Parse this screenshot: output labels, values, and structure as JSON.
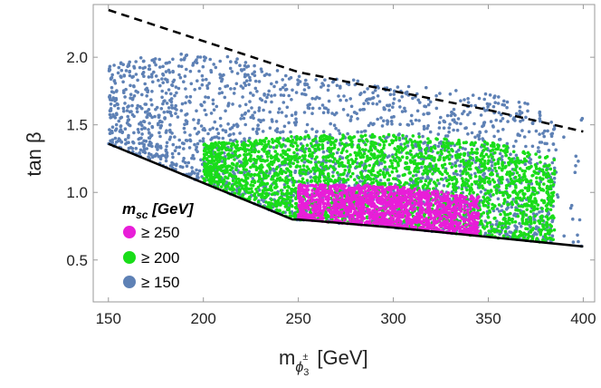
{
  "chart_data": {
    "type": "scatter",
    "xlabel": "m",
    "xlabel_sub": "ϕ",
    "xlabel_sup": "±",
    "xlabel_subsub": "3",
    "xlabel_unit": "[GeV]",
    "ylabel": "tan β",
    "xlim": [
      142,
      406
    ],
    "ylim": [
      0.19,
      2.39
    ],
    "xticks": [
      150,
      200,
      250,
      300,
      350,
      400
    ],
    "xtick_labels": [
      "150",
      "200",
      "250",
      "300",
      "350",
      "400"
    ],
    "yticks": [
      0.5,
      1.0,
      1.5,
      2.0
    ],
    "ytick_labels": [
      "0.5",
      "1.0",
      "1.5",
      "2.0"
    ],
    "grid": false,
    "legend": {
      "placement": "bottom-left",
      "title_main": "m",
      "title_sub": "sc",
      "title_rest": " [GeV]",
      "entries": [
        {
          "label": "≥ 250",
          "color": "#e81ed8"
        },
        {
          "label": "≥ 200",
          "color": "#19dd19"
        },
        {
          "label": "≥ 150",
          "color": "#5e81b5"
        }
      ]
    },
    "upper_dashed_boundary": {
      "x": [
        150,
        200,
        250,
        300,
        350,
        400
      ],
      "y": [
        2.35,
        2.12,
        1.89,
        1.75,
        1.61,
        1.45
      ],
      "color": "#000000",
      "style": "dashed"
    },
    "lower_boundary": {
      "x": [
        150,
        200,
        247,
        250,
        300,
        350,
        400
      ],
      "y": [
        1.36,
        1.07,
        0.8,
        0.8,
        0.74,
        0.67,
        0.6
      ],
      "color": "#000000"
    },
    "series": [
      {
        "name": "≥ 150",
        "color": "#5e81b5",
        "region": {
          "x": [
            150,
            400
          ],
          "lower": [
            [
              150,
              1.36
            ],
            [
              200,
              1.07
            ],
            [
              247,
              0.8
            ],
            [
              300,
              0.74
            ],
            [
              400,
              0.6
            ]
          ],
          "upper": [
            [
              150,
              1.97
            ],
            [
              200,
              2.05
            ],
            [
              250,
              1.89
            ],
            [
              300,
              1.8
            ],
            [
              350,
              1.73
            ],
            [
              400,
              1.55
            ]
          ],
          "x_end_fade": 385
        }
      },
      {
        "name": "≥ 200",
        "color": "#19dd19",
        "region": {
          "x": [
            200,
            385
          ],
          "lower": [
            [
              200,
              1.07
            ],
            [
              247,
              0.8
            ],
            [
              300,
              0.74
            ],
            [
              385,
              0.62
            ]
          ],
          "upper": [
            [
              200,
              1.36
            ],
            [
              250,
              1.42
            ],
            [
              300,
              1.43
            ],
            [
              350,
              1.38
            ],
            [
              385,
              1.25
            ]
          ]
        }
      },
      {
        "name": "≥ 250",
        "color": "#e81ed8",
        "region": {
          "x": [
            250,
            345
          ],
          "lower": [
            [
              250,
              0.8
            ],
            [
              300,
              0.74
            ],
            [
              345,
              0.68
            ]
          ],
          "upper": [
            [
              250,
              1.06
            ],
            [
              300,
              1.05
            ],
            [
              345,
              0.97
            ]
          ]
        }
      }
    ]
  }
}
